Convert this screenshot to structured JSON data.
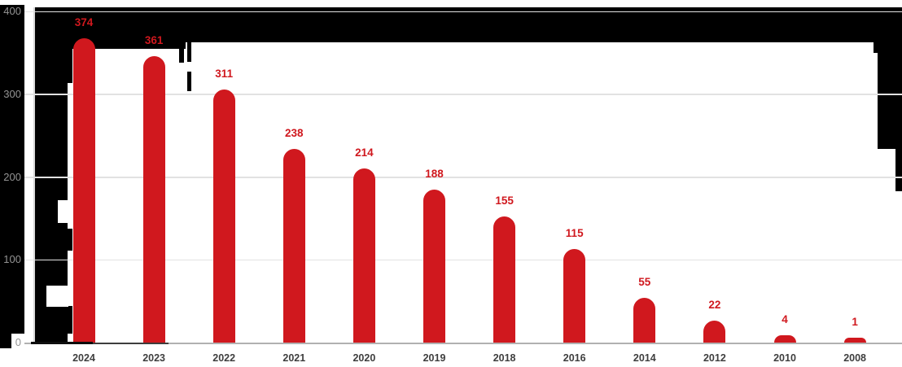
{
  "chart_data": {
    "type": "bar",
    "title": "",
    "xlabel": "",
    "ylabel": "",
    "categories": [
      "2024",
      "2023",
      "2022",
      "2021",
      "2020",
      "2019",
      "2018",
      "2016",
      "2014",
      "2012",
      "2010",
      "2008"
    ],
    "values": [
      374,
      361,
      311,
      238,
      214,
      188,
      155,
      115,
      55,
      22,
      4,
      1
    ],
    "value_labels_shown": true,
    "ylim": [
      0,
      400
    ],
    "yticks": [
      400,
      300,
      200,
      100,
      0
    ],
    "grid": true,
    "legend_position": "none",
    "colors": {
      "bar": "#d0181e",
      "value_label": "#d0181e",
      "y_tick_label": "#949494",
      "x_tick_label": "#3e3e3e",
      "gridline": "#e2e2e2",
      "axis_line": "#d9d9d9",
      "baseline": "#b1b1b1",
      "baseline_dark_segment": "#0d0d0d",
      "plot_background": "#ffffff",
      "unpainted_background": "#000000"
    }
  }
}
